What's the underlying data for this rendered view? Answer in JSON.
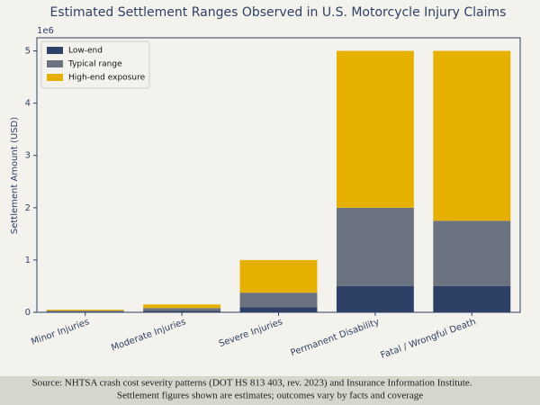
{
  "chart_data": {
    "type": "stacked_bar",
    "title": "Estimated Settlement Ranges Observed in U.S. Motorcycle Injury Claims",
    "y_label": "Settlement Amount (USD)",
    "y_offset_label": "1e6",
    "categories": [
      "Minor Injuries",
      "Moderate Injuries",
      "Severe Injuries",
      "Permanent Disability",
      "Fatal / Wrongful Death"
    ],
    "series": [
      {
        "name": "Low-end",
        "color": "#2e4065",
        "values": [
          0.015,
          0.03,
          0.1,
          0.5,
          0.5
        ]
      },
      {
        "name": "Typical range",
        "color": "#6b7280",
        "values": [
          0.015,
          0.05,
          0.275,
          1.5,
          1.25
        ]
      },
      {
        "name": "High-end exposure",
        "color": "#e6b000",
        "values": [
          0.02,
          0.07,
          0.625,
          3.0,
          3.25
        ]
      }
    ],
    "ylim": [
      0,
      5.25
    ],
    "yticks": [
      0,
      1,
      2,
      3,
      4,
      5
    ],
    "legend": "upper-left",
    "source_lines": [
      "Source: NHTSA crash cost severity patterns (DOT HS 813 403, rev. 2023) and Insurance Information Institute.",
      "Settlement figures shown are estimates; outcomes vary by facts and coverage"
    ]
  }
}
